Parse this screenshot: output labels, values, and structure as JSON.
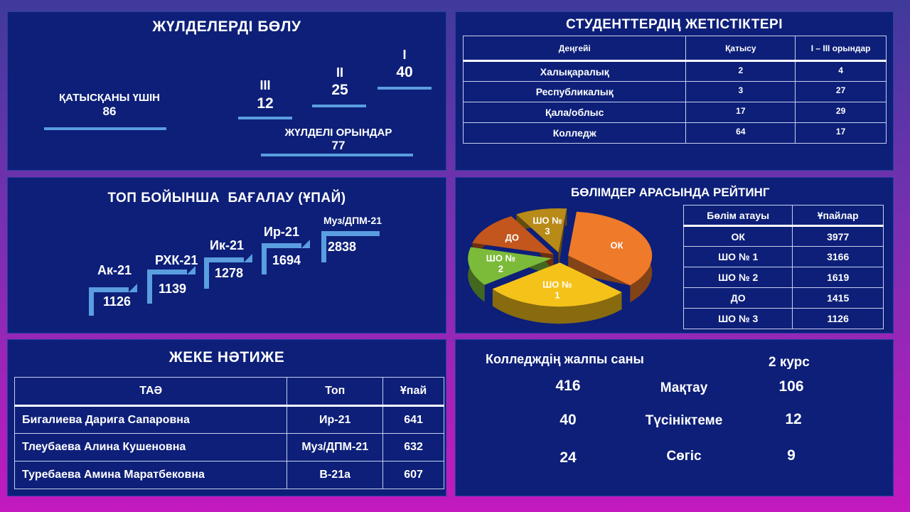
{
  "awards": {
    "title": "ЖҮЛДЕЛЕРДІ БӨЛУ",
    "participation_label": "ҚАТЫСҚАНЫ ҮШІН",
    "participation_value": "86",
    "third_label": "III",
    "third_value": "12",
    "second_label": "II",
    "second_value": "25",
    "first_label": "I",
    "first_value": "40",
    "prize_label": "ЖҮЛДЕЛІ ОРЫНДАР",
    "prize_value": "77"
  },
  "achievements": {
    "title": "СТУДЕНТТЕРДІҢ ЖЕТІСТІКТЕРІ",
    "headers": [
      "Деңгейі",
      "Қатысу",
      "I – III орындар"
    ],
    "rows": [
      [
        "Халықаралық",
        "2",
        "4"
      ],
      [
        "Республикалық",
        "3",
        "27"
      ],
      [
        "Қала/облыс",
        "17",
        "29"
      ],
      [
        "Колледж",
        "64",
        "17"
      ]
    ]
  },
  "groups": {
    "title": "ТОП БОЙЫНША  БАҒАЛАУ (ҰПАЙ)",
    "items": [
      {
        "name": "Ак-21",
        "value": "1126"
      },
      {
        "name": "РХК-21",
        "value": "1139"
      },
      {
        "name": "Ик-21",
        "value": "1278"
      },
      {
        "name": "Ир-21",
        "value": "1694"
      },
      {
        "name": "Муз/ДПМ-21",
        "value": "2838"
      }
    ]
  },
  "rating": {
    "title": "БӨЛІМДЕР АРАСЫНДА РЕЙТИНГ",
    "headers": [
      "Бөлім атауы",
      "Ұпайлар"
    ],
    "rows": [
      [
        "ОК",
        "3977"
      ],
      [
        "ШО № 1",
        "3166"
      ],
      [
        "ШО № 2",
        "1619"
      ],
      [
        "ДО",
        "1415"
      ],
      [
        "ШО № 3",
        "1126"
      ]
    ]
  },
  "chart_data": {
    "type": "pie",
    "title": "БӨЛІМДЕР АРАСЫНДА РЕЙТИНГ",
    "categories": [
      "ОК",
      "ШО № 1",
      "ШО № 2",
      "ДО",
      "ШО № 3"
    ],
    "values": [
      3977,
      3166,
      1619,
      1415,
      1126
    ],
    "colors": [
      "#ee7a2a",
      "#f5c21a",
      "#7cbb3a",
      "#c2561c",
      "#b88a18"
    ],
    "label_lines": [
      [
        "ОК"
      ],
      [
        "ШО №",
        "1"
      ],
      [
        "ШО №",
        "2"
      ],
      [
        "ДО"
      ],
      [
        "ШО №",
        "3"
      ]
    ]
  },
  "individual": {
    "title": "ЖЕКЕ НӘТИЖЕ",
    "headers": [
      "ТАӘ",
      "Топ",
      "Ұпай"
    ],
    "rows": [
      [
        "Бигалиева Дарига Сапаровна",
        "Ир-21",
        "641"
      ],
      [
        "Тлеубаева Алина Кушеновна",
        "Муз/ДПМ-21",
        "632"
      ],
      [
        "Туребаева Амина Маратбековна",
        "В-21а",
        "607"
      ]
    ]
  },
  "totals": {
    "college_total_label": "Колледждің жалпы саны",
    "course_label": "2 курс",
    "rows": [
      {
        "total": "416",
        "label": "Мақтау",
        "course": "106"
      },
      {
        "total": "40",
        "label": "Түсініктеме",
        "course": "12"
      },
      {
        "total": "24",
        "label": "Сөгіс",
        "course": "9"
      }
    ]
  }
}
